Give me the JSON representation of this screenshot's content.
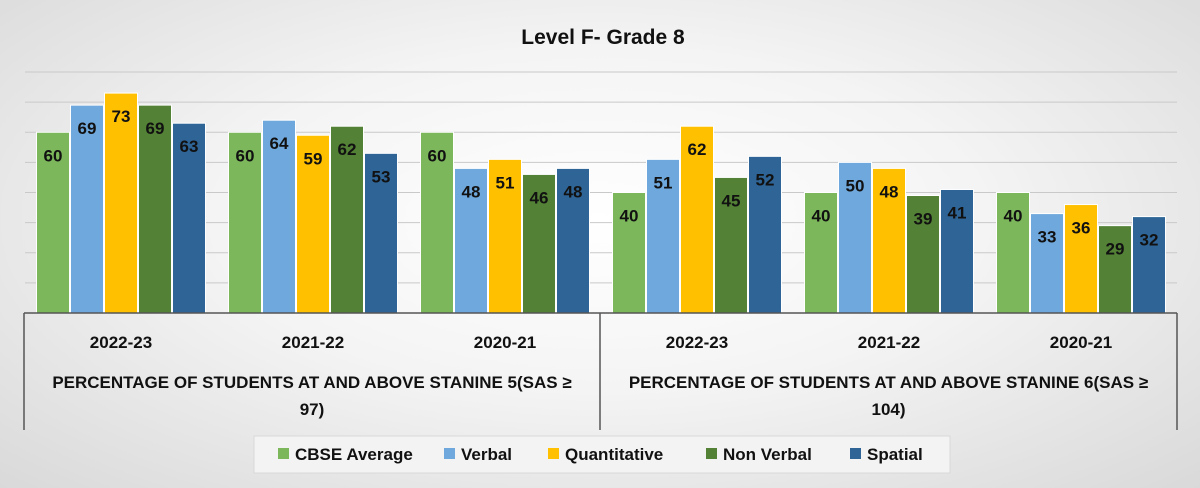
{
  "chart_data": {
    "type": "bar",
    "title": "Level F- Grade 8",
    "ylim": [
      0,
      80
    ],
    "grid": true,
    "legend_position": "bottom",
    "groups": [
      {
        "label": "PERCENTAGE OF STUDENTS AT AND ABOVE STANINE 5(SAS ≥ 97)",
        "label_lines": [
          "PERCENTAGE OF STUDENTS AT AND ABOVE STANINE 5(SAS ≥",
          "97)"
        ],
        "categories": [
          "2022-23",
          "2021-22",
          "2020-21"
        ]
      },
      {
        "label": "PERCENTAGE OF STUDENTS AT AND ABOVE STANINE 6(SAS ≥ 104)",
        "label_lines": [
          "PERCENTAGE OF STUDENTS AT AND ABOVE STANINE 6(SAS ≥",
          "104)"
        ],
        "categories": [
          "2022-23",
          "2021-22",
          "2020-21"
        ]
      }
    ],
    "series": [
      {
        "name": "CBSE Average",
        "color": "#7cb85b",
        "values": [
          60,
          60,
          60,
          40,
          40,
          40
        ]
      },
      {
        "name": "Verbal",
        "color": "#6fa8dc",
        "values": [
          69,
          64,
          48,
          51,
          50,
          33
        ]
      },
      {
        "name": "Quantitative",
        "color": "#ffc000",
        "values": [
          73,
          59,
          51,
          62,
          48,
          36
        ]
      },
      {
        "name": "Non Verbal",
        "color": "#538135",
        "values": [
          69,
          62,
          46,
          45,
          39,
          29
        ]
      },
      {
        "name": "Spatial",
        "color": "#2e6496",
        "values": [
          63,
          53,
          48,
          52,
          41,
          32
        ]
      }
    ]
  }
}
